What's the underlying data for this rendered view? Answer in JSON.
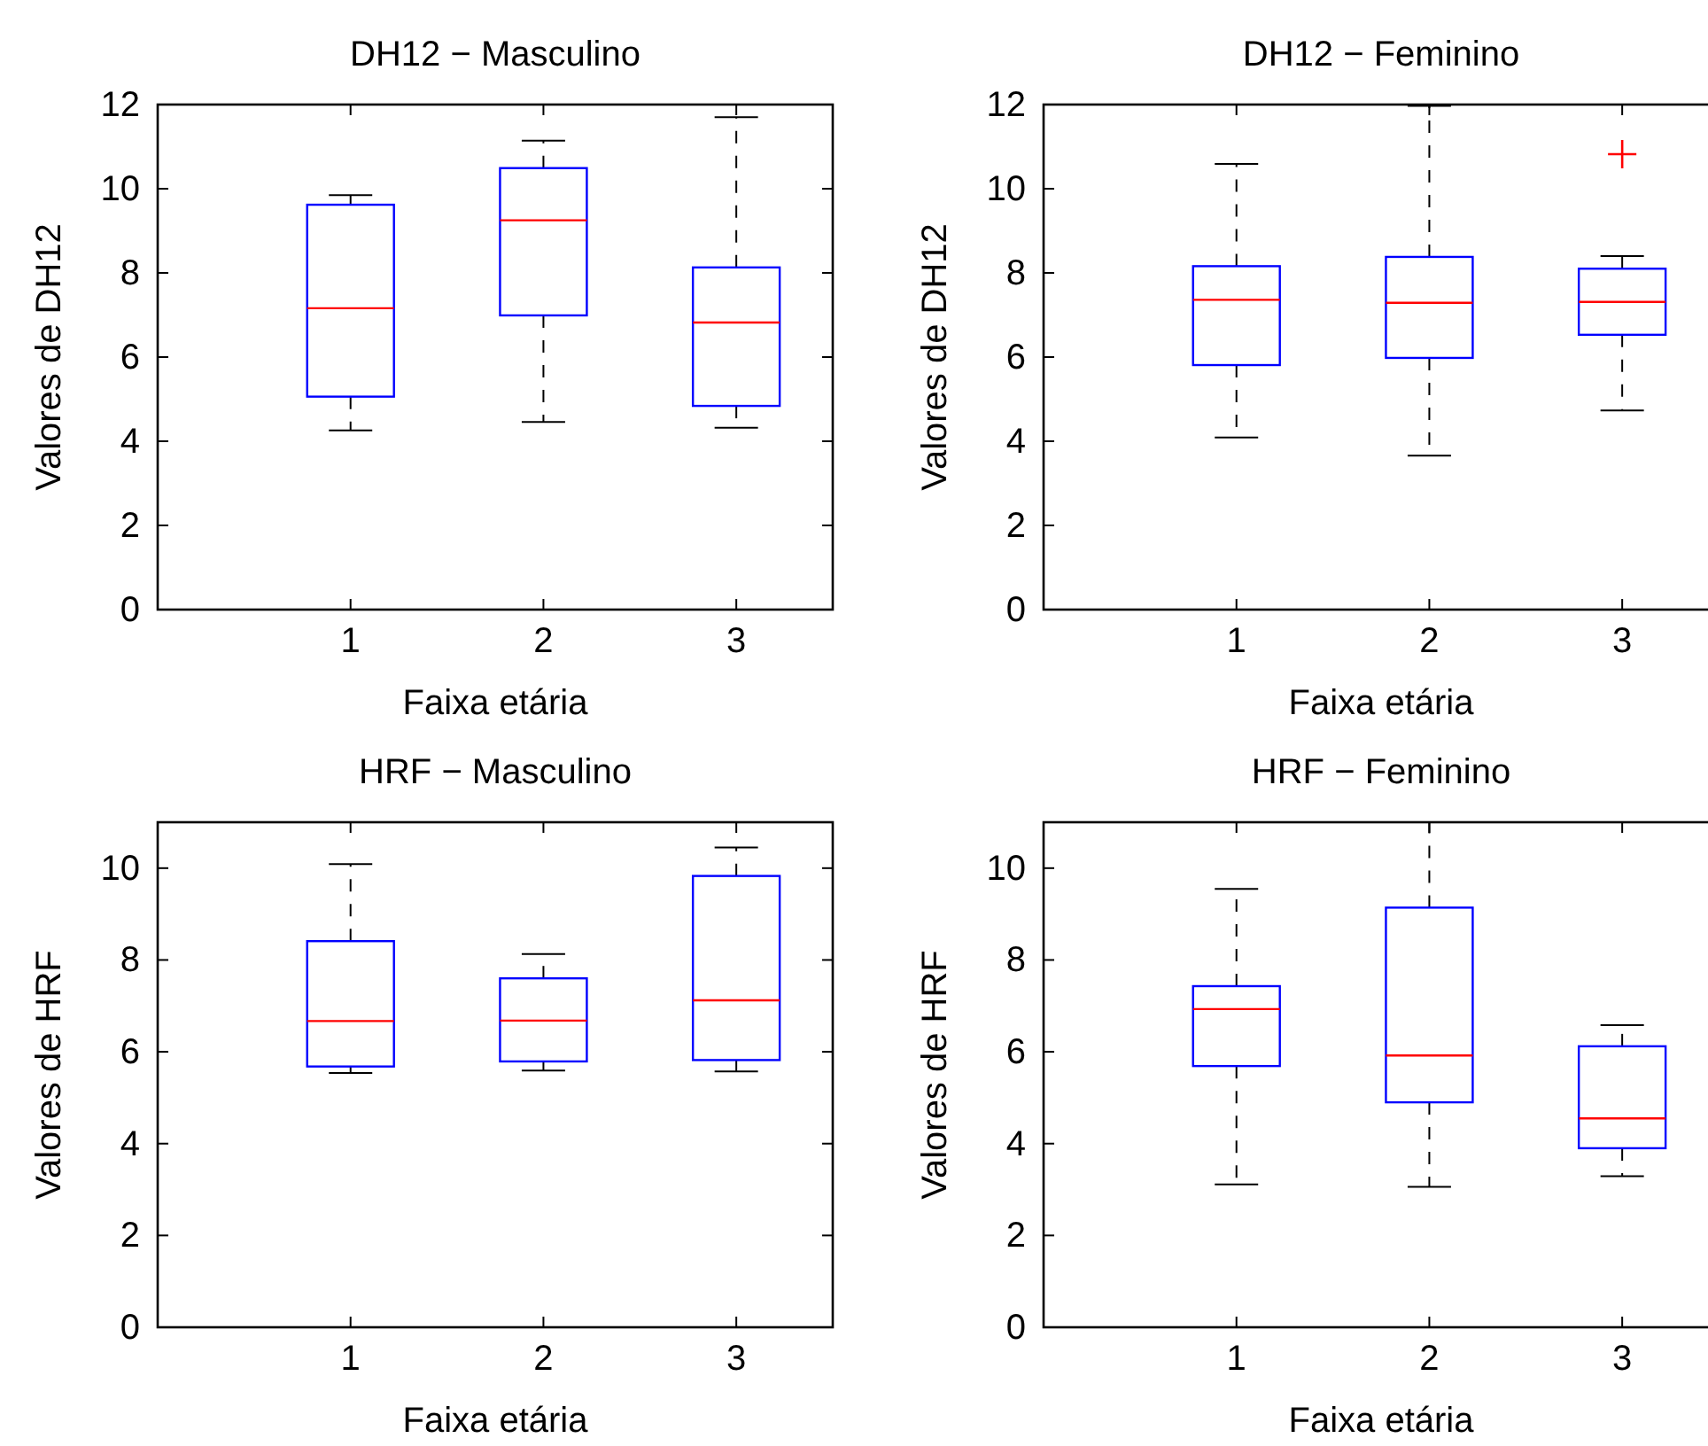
{
  "chart_data": [
    {
      "type": "box",
      "title": "DH12 − Masculino",
      "xlabel": "Faixa etária",
      "ylabel": "Valores de DH12",
      "categories": [
        "1",
        "2",
        "3"
      ],
      "ylim": [
        0,
        12
      ],
      "yticks": [
        0,
        2,
        4,
        6,
        8,
        10,
        12
      ],
      "boxes": [
        {
          "low": 4.26,
          "q1": 5.06,
          "median": 7.16,
          "q3": 9.62,
          "high": 9.85
        },
        {
          "low": 4.46,
          "q1": 6.99,
          "median": 9.25,
          "q3": 10.49,
          "high": 11.14
        },
        {
          "low": 4.32,
          "q1": 4.84,
          "median": 6.82,
          "q3": 8.13,
          "high": 11.7
        }
      ]
    },
    {
      "type": "box",
      "title": "DH12 − Feminino",
      "xlabel": "Faixa etária",
      "ylabel": "Valores de DH12",
      "categories": [
        "1",
        "2",
        "3"
      ],
      "ylim": [
        0,
        12
      ],
      "yticks": [
        0,
        2,
        4,
        6,
        8,
        10,
        12
      ],
      "boxes": [
        {
          "low": 4.09,
          "q1": 5.81,
          "median": 7.36,
          "q3": 8.16,
          "high": 10.59
        },
        {
          "low": 3.66,
          "q1": 5.98,
          "median": 7.29,
          "q3": 8.38,
          "high": 11.97
        },
        {
          "low": 4.73,
          "q1": 6.53,
          "median": 7.31,
          "q3": 8.1,
          "high": 8.4,
          "outliers": [
            10.82
          ]
        }
      ]
    },
    {
      "type": "box",
      "title": "HRF − Masculino",
      "xlabel": "Faixa etária",
      "ylabel": "Valores de HRF",
      "categories": [
        "1",
        "2",
        "3"
      ],
      "ylim": [
        0,
        11
      ],
      "yticks": [
        0,
        2,
        4,
        6,
        8,
        10
      ],
      "boxes": [
        {
          "low": 5.54,
          "q1": 5.68,
          "median": 6.67,
          "q3": 8.41,
          "high": 10.09
        },
        {
          "low": 5.59,
          "q1": 5.79,
          "median": 6.68,
          "q3": 7.6,
          "high": 8.13
        },
        {
          "low": 5.57,
          "q1": 5.82,
          "median": 7.12,
          "q3": 9.83,
          "high": 10.45
        }
      ]
    },
    {
      "type": "box",
      "title": "HRF − Feminino",
      "xlabel": "Faixa etária",
      "ylabel": "Valores de HRF",
      "categories": [
        "1",
        "2",
        "3"
      ],
      "ylim": [
        0,
        11
      ],
      "yticks": [
        0,
        2,
        4,
        6,
        8,
        10
      ],
      "boxes": [
        {
          "low": 3.11,
          "q1": 5.69,
          "median": 6.93,
          "q3": 7.43,
          "high": 9.55
        },
        {
          "low": 3.06,
          "q1": 4.9,
          "median": 5.92,
          "q3": 9.14,
          "high": 11
        },
        {
          "low": 3.29,
          "q1": 3.9,
          "median": 4.55,
          "q3": 6.12,
          "high": 6.58
        }
      ]
    }
  ]
}
